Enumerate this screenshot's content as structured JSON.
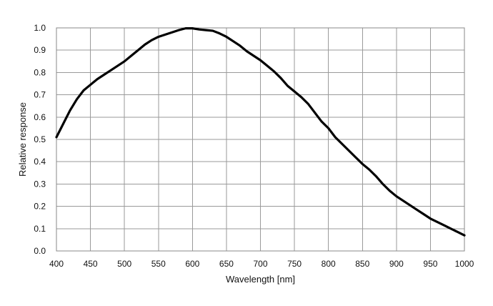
{
  "chart_data": {
    "type": "line",
    "title": "",
    "xlabel": "Wavelength  [nm]",
    "ylabel": "Relative response",
    "xlim": [
      400,
      1000
    ],
    "ylim": [
      0.0,
      1.0
    ],
    "x_ticks": [
      "400",
      "450",
      "500",
      "550",
      "600",
      "650",
      "700",
      "750",
      "800",
      "850",
      "900",
      "950",
      "1000"
    ],
    "y_ticks": [
      "0.0",
      "0.1",
      "0.2",
      "0.3",
      "0.4",
      "0.5",
      "0.6",
      "0.7",
      "0.8",
      "0.9",
      "1.0"
    ],
    "grid": true,
    "legend": "none",
    "series": [
      {
        "color": "#000000",
        "x": [
          400,
          410,
          420,
          430,
          440,
          450,
          460,
          470,
          480,
          490,
          500,
          510,
          520,
          530,
          540,
          550,
          560,
          570,
          580,
          590,
          600,
          610,
          620,
          630,
          640,
          650,
          660,
          670,
          680,
          690,
          700,
          710,
          720,
          730,
          740,
          750,
          760,
          770,
          780,
          790,
          800,
          810,
          820,
          830,
          840,
          850,
          860,
          870,
          880,
          890,
          900,
          910,
          920,
          930,
          940,
          950,
          960,
          970,
          980,
          990,
          1000
        ],
        "values": [
          0.51,
          0.57,
          0.63,
          0.68,
          0.72,
          0.745,
          0.77,
          0.79,
          0.81,
          0.83,
          0.85,
          0.875,
          0.9,
          0.925,
          0.945,
          0.96,
          0.97,
          0.98,
          0.99,
          0.998,
          0.998,
          0.993,
          0.99,
          0.987,
          0.975,
          0.96,
          0.94,
          0.92,
          0.895,
          0.875,
          0.855,
          0.83,
          0.805,
          0.775,
          0.74,
          0.715,
          0.69,
          0.66,
          0.62,
          0.58,
          0.55,
          0.51,
          0.48,
          0.45,
          0.42,
          0.39,
          0.365,
          0.335,
          0.3,
          0.27,
          0.245,
          0.225,
          0.205,
          0.185,
          0.165,
          0.145,
          0.13,
          0.115,
          0.1,
          0.085,
          0.07
        ]
      }
    ]
  }
}
